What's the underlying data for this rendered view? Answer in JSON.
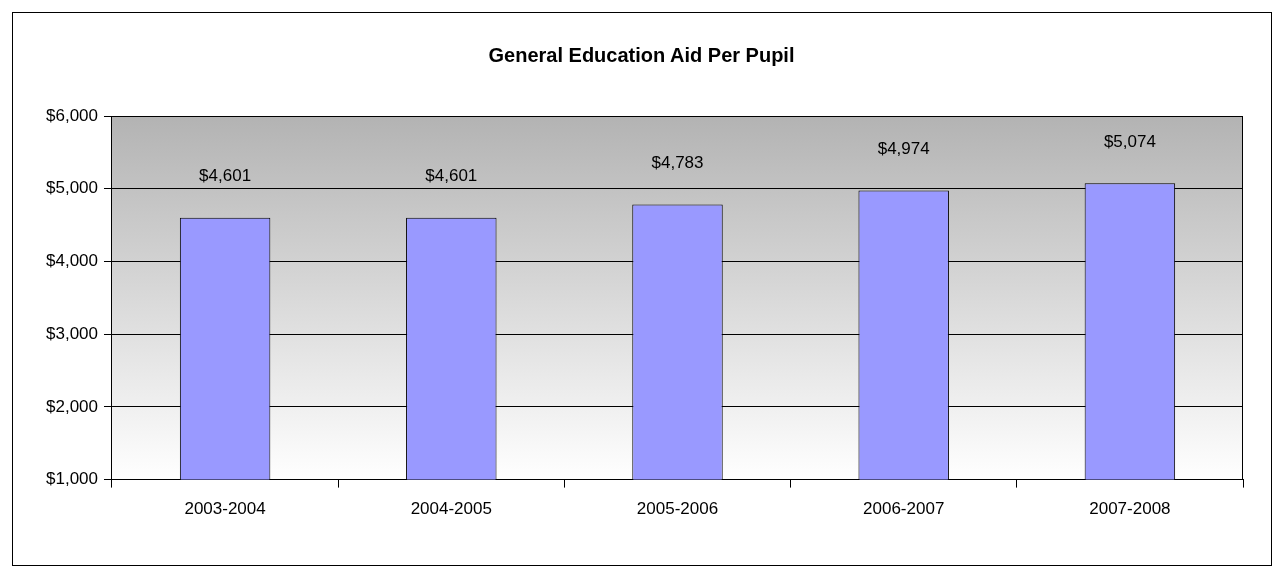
{
  "chart_data": {
    "type": "bar",
    "title": "General Education Aid Per Pupil",
    "categories": [
      "2003-2004",
      "2004-2005",
      "2005-2006",
      "2006-2007",
      "2007-2008"
    ],
    "values": [
      4601,
      4601,
      4783,
      4974,
      5074
    ],
    "value_labels": [
      "$4,601",
      "$4,601",
      "$4,783",
      "$4,974",
      "$5,074"
    ],
    "color": "#9999ff",
    "ylim": [
      1000,
      6000
    ],
    "yticks": [
      {
        "value": 1000,
        "label": "$1,000"
      },
      {
        "value": 2000,
        "label": "$2,000"
      },
      {
        "value": 3000,
        "label": "$3,000"
      },
      {
        "value": 4000,
        "label": "$4,000"
      },
      {
        "value": 5000,
        "label": "$5,000"
      },
      {
        "value": 6000,
        "label": "$6,000"
      }
    ],
    "grid": "y",
    "legend": false
  }
}
